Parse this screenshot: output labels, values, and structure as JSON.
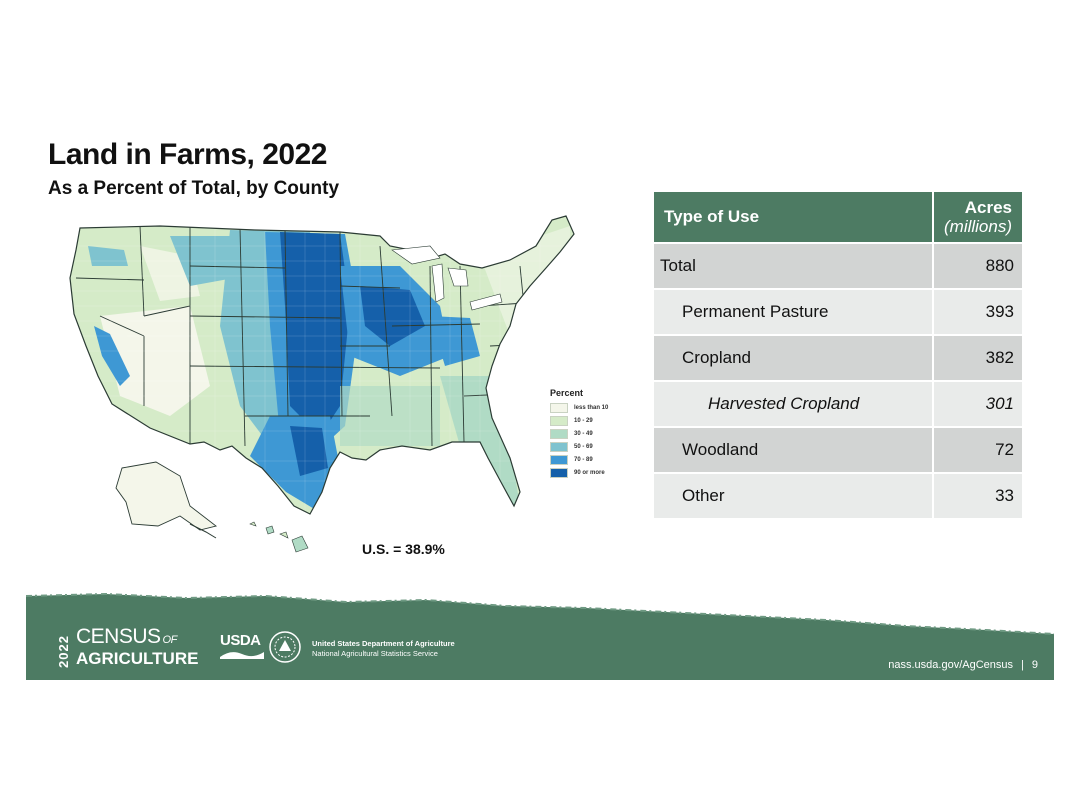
{
  "title": "Land in Farms, 2022",
  "subtitle": "As a Percent of Total, by County",
  "map": {
    "us_stat": "U.S. = 38.9%",
    "legend_title": "Percent",
    "legend": [
      {
        "label": "less than 10",
        "color": "#f4f6ea"
      },
      {
        "label": "10 - 29",
        "color": "#d5ebc8"
      },
      {
        "label": "30 - 49",
        "color": "#b0dbc5"
      },
      {
        "label": "50 - 69",
        "color": "#7fc3cf"
      },
      {
        "label": "70 - 89",
        "color": "#3e98d4"
      },
      {
        "label": "90 or more",
        "color": "#1560aa"
      }
    ]
  },
  "table": {
    "header_type": "Type of Use",
    "header_acres": "Acres",
    "header_units": "(millions)",
    "rows": [
      {
        "label": "Total",
        "value": "880"
      },
      {
        "label": "Permanent Pasture",
        "value": "393"
      },
      {
        "label": "Cropland",
        "value": "382"
      },
      {
        "label": "Harvested Cropland",
        "value": "301"
      },
      {
        "label": "Woodland",
        "value": "72"
      },
      {
        "label": "Other",
        "value": "33"
      }
    ]
  },
  "footer": {
    "year": "2022",
    "census": "CENSUS",
    "of": "OF",
    "agriculture": "AGRICULTURE",
    "usda": "USDA",
    "agency_line1": "United States Department of Agriculture",
    "agency_line2": "National Agricultural Statistics Service",
    "url": "nass.usda.gov/AgCensus",
    "separator": "|",
    "page": "9"
  },
  "colors": {
    "brand_green": "#4d7b63",
    "table_dark_row": "#d2d4d3",
    "table_light_row": "#e9ebea"
  }
}
